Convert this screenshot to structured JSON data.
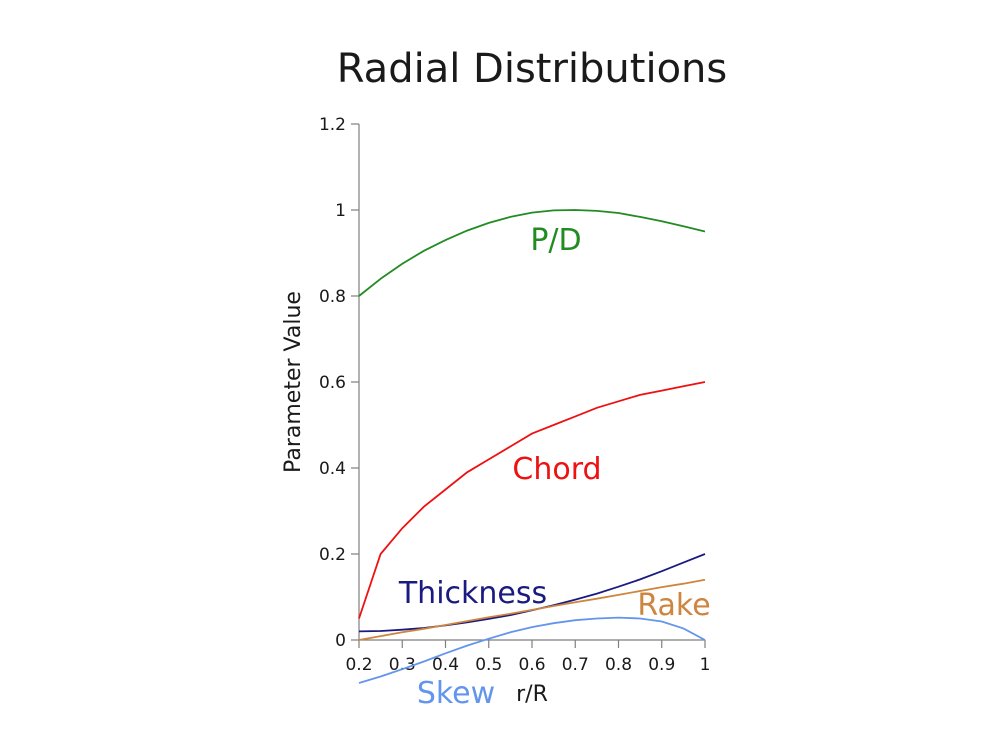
{
  "chart_data": {
    "type": "line",
    "title": "Radial Distributions",
    "xlabel": "r/R",
    "ylabel": "Parameter Value",
    "xlim": [
      0.2,
      1.0
    ],
    "ylim": [
      0,
      1.2
    ],
    "xticks": [
      "0.2",
      "0.3",
      "0.4",
      "0.5",
      "0.6",
      "0.7",
      "0.8",
      "0.9",
      "1"
    ],
    "yticks": [
      "0",
      "0.2",
      "0.4",
      "0.6",
      "0.8",
      "1",
      "1.2"
    ],
    "grid": false,
    "legend": "none",
    "x": [
      0.2,
      0.25,
      0.3,
      0.35,
      0.4,
      0.45,
      0.5,
      0.55,
      0.6,
      0.65,
      0.7,
      0.75,
      0.8,
      0.85,
      0.9,
      0.95,
      1.0
    ],
    "series": [
      {
        "name": "P/D",
        "color": "#228b22",
        "values": [
          0.8,
          0.84,
          0.875,
          0.905,
          0.93,
          0.952,
          0.97,
          0.984,
          0.994,
          0.999,
          1.0,
          0.998,
          0.993,
          0.984,
          0.974,
          0.962,
          0.95
        ]
      },
      {
        "name": "Chord",
        "color": "#ee1111",
        "values": [
          0.05,
          0.2,
          0.26,
          0.31,
          0.35,
          0.39,
          0.42,
          0.45,
          0.48,
          0.5,
          0.52,
          0.54,
          0.555,
          0.57,
          0.58,
          0.59,
          0.6
        ]
      },
      {
        "name": "Thickness",
        "color": "#1a1a80",
        "values": [
          0.02,
          0.021,
          0.024,
          0.028,
          0.034,
          0.041,
          0.049,
          0.058,
          0.069,
          0.081,
          0.094,
          0.108,
          0.124,
          0.141,
          0.16,
          0.18,
          0.2
        ]
      },
      {
        "name": "Rake",
        "color": "#cd853f",
        "values": [
          0.0,
          0.009,
          0.018,
          0.026,
          0.035,
          0.044,
          0.053,
          0.061,
          0.07,
          0.079,
          0.088,
          0.096,
          0.105,
          0.114,
          0.123,
          0.131,
          0.14
        ]
      },
      {
        "name": "Skew",
        "color": "#6495ed",
        "values": [
          -0.1,
          -0.085,
          -0.068,
          -0.05,
          -0.031,
          -0.013,
          0.003,
          0.018,
          0.03,
          0.039,
          0.046,
          0.05,
          0.052,
          0.05,
          0.043,
          0.027,
          0.0
        ]
      }
    ]
  }
}
